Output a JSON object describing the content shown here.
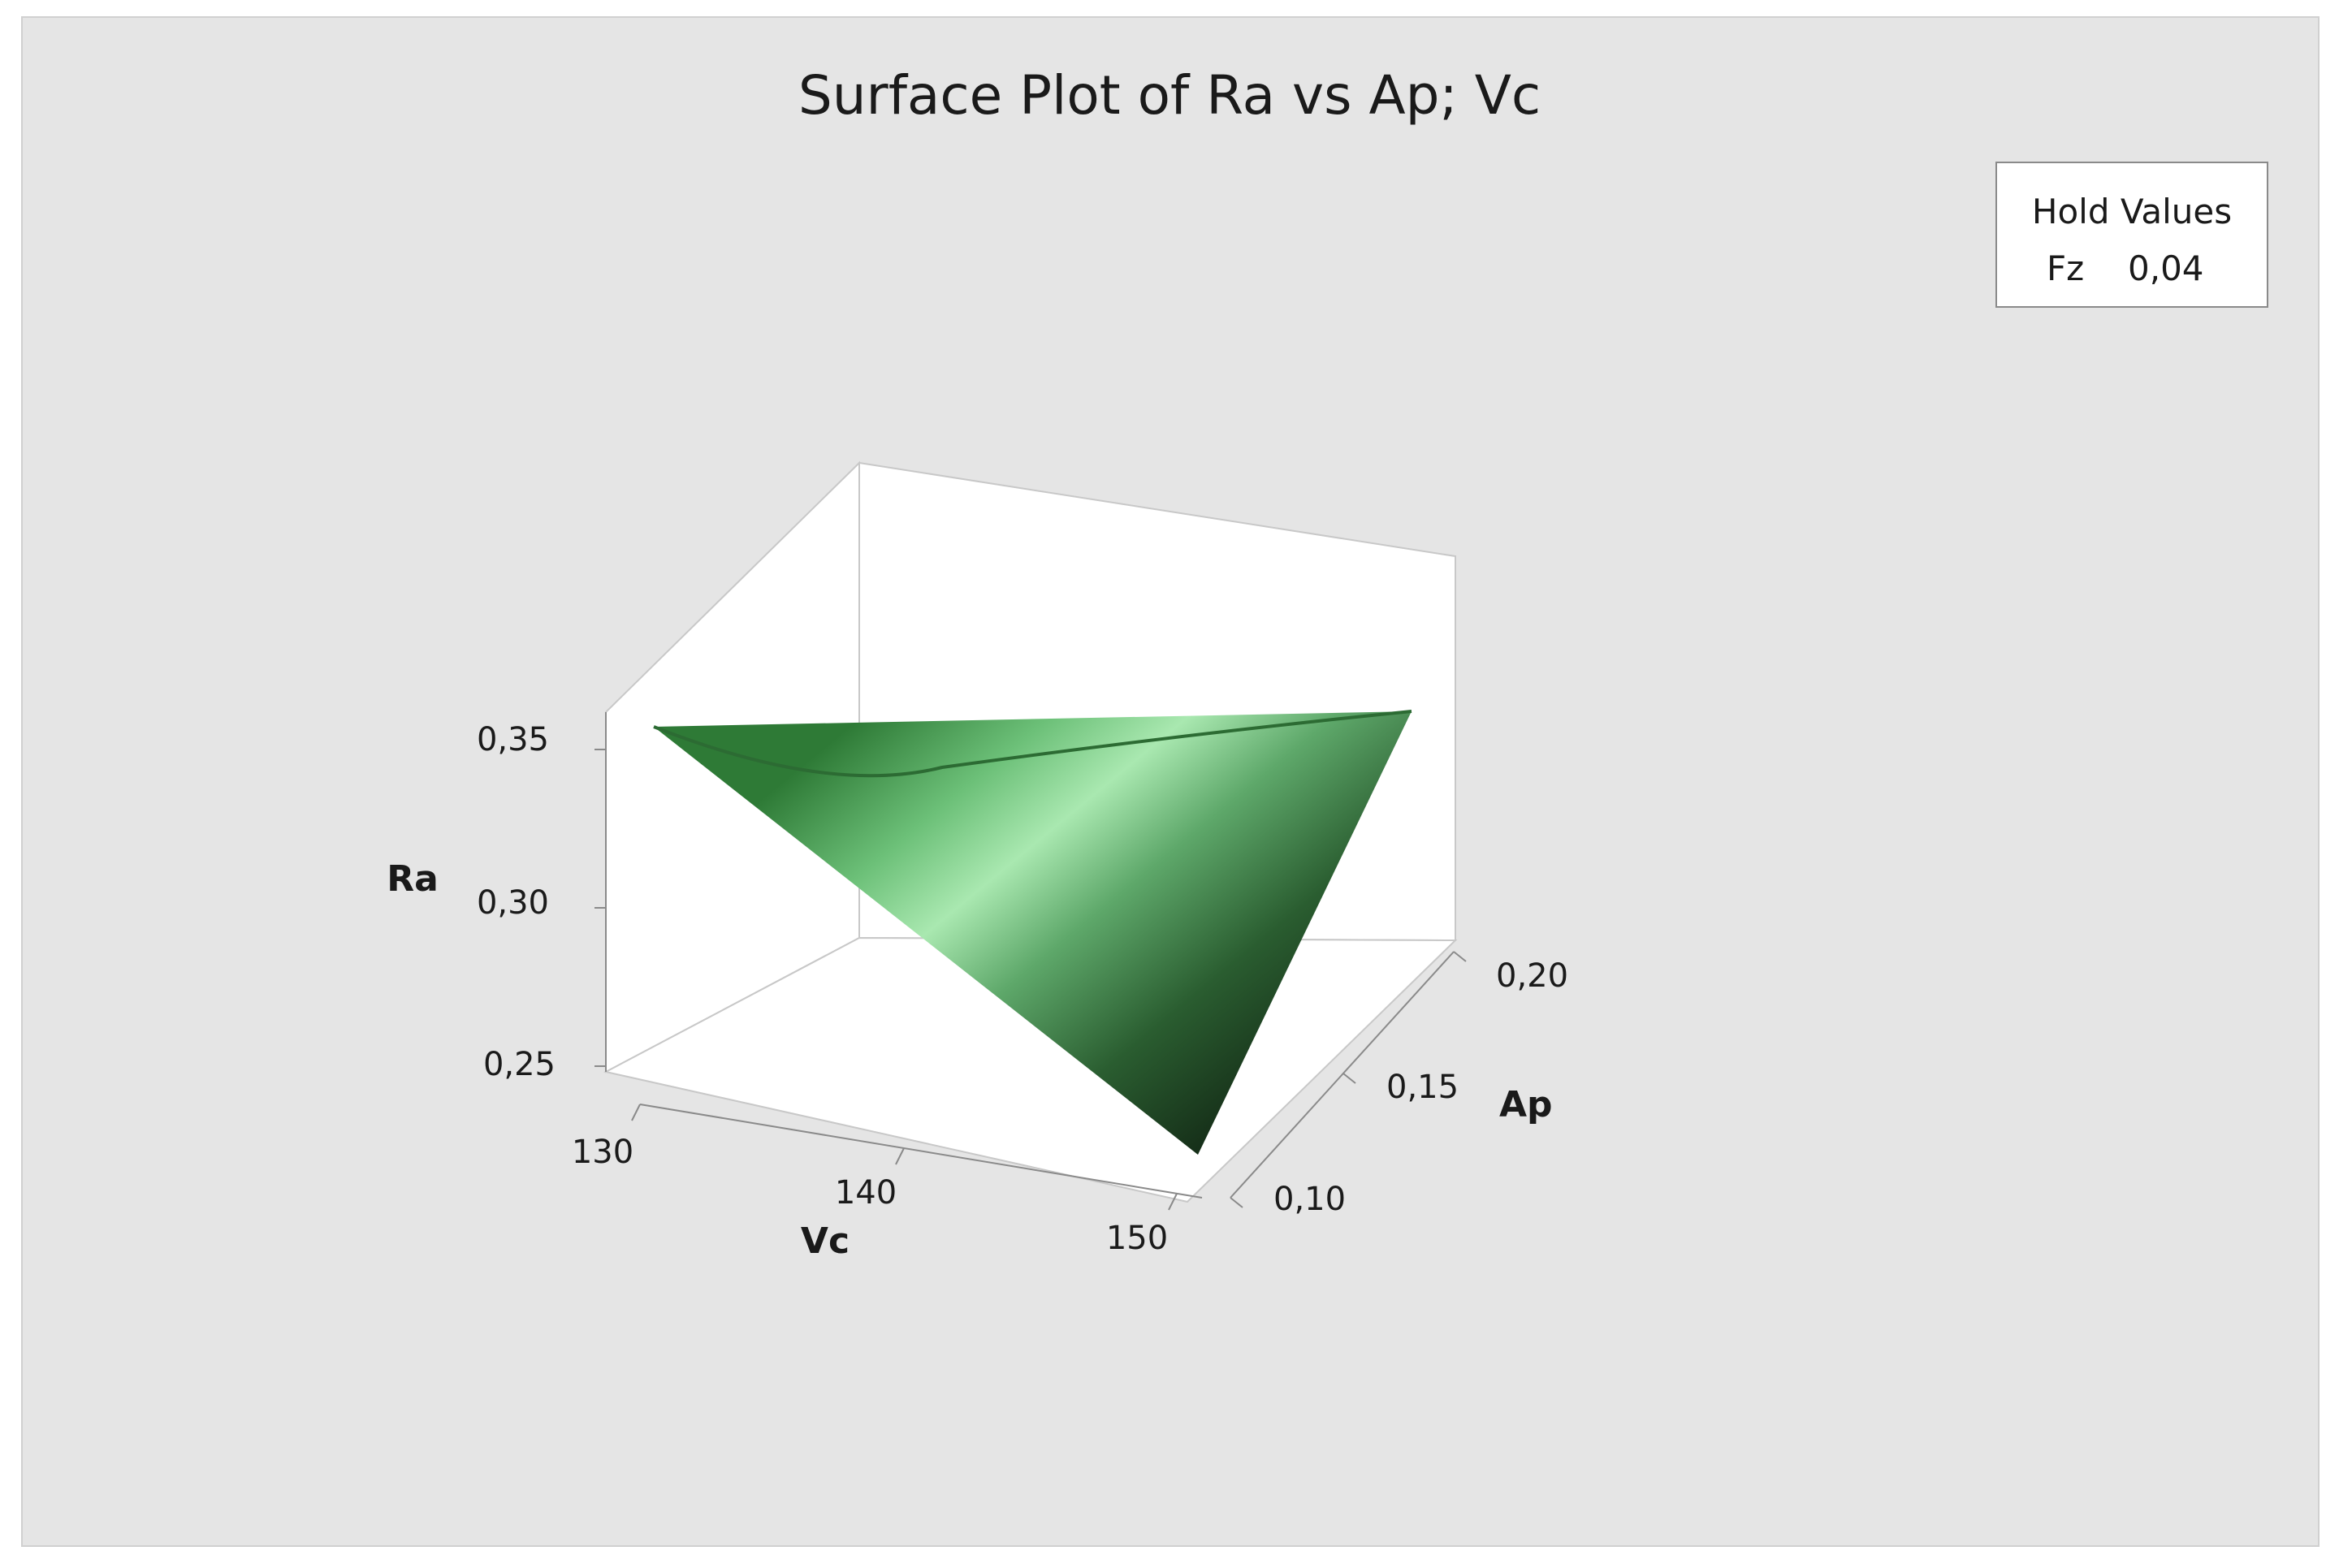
{
  "chart_data": {
    "type": "surface",
    "title": "Surface Plot of Ra vs Ap; Vc",
    "x_axis": {
      "label": "Vc",
      "ticks": [
        "130",
        "140",
        "150"
      ],
      "range": [
        130,
        150
      ]
    },
    "y_axis": {
      "label": "Ap",
      "ticks": [
        "0,10",
        "0,15",
        "0,20"
      ],
      "range": [
        0.1,
        0.2
      ]
    },
    "z_axis": {
      "label": "Ra",
      "ticks": [
        "0,25",
        "0,30",
        "0,35"
      ],
      "range": [
        0.24,
        0.36
      ]
    },
    "corners": [
      {
        "vc": 130,
        "ap": 0.2,
        "ra": 0.353
      },
      {
        "vc": 150,
        "ap": 0.2,
        "ra": 0.35
      },
      {
        "vc": 150,
        "ap": 0.1,
        "ra": 0.245
      }
    ],
    "hold_values": {
      "title": "Hold Values",
      "variable": "Fz",
      "value": "0,04"
    },
    "colors": {
      "dark": "#1b3a1e",
      "mid": "#3e8c47",
      "light": "#a9e8b0",
      "background": "#e5e5e5"
    }
  }
}
